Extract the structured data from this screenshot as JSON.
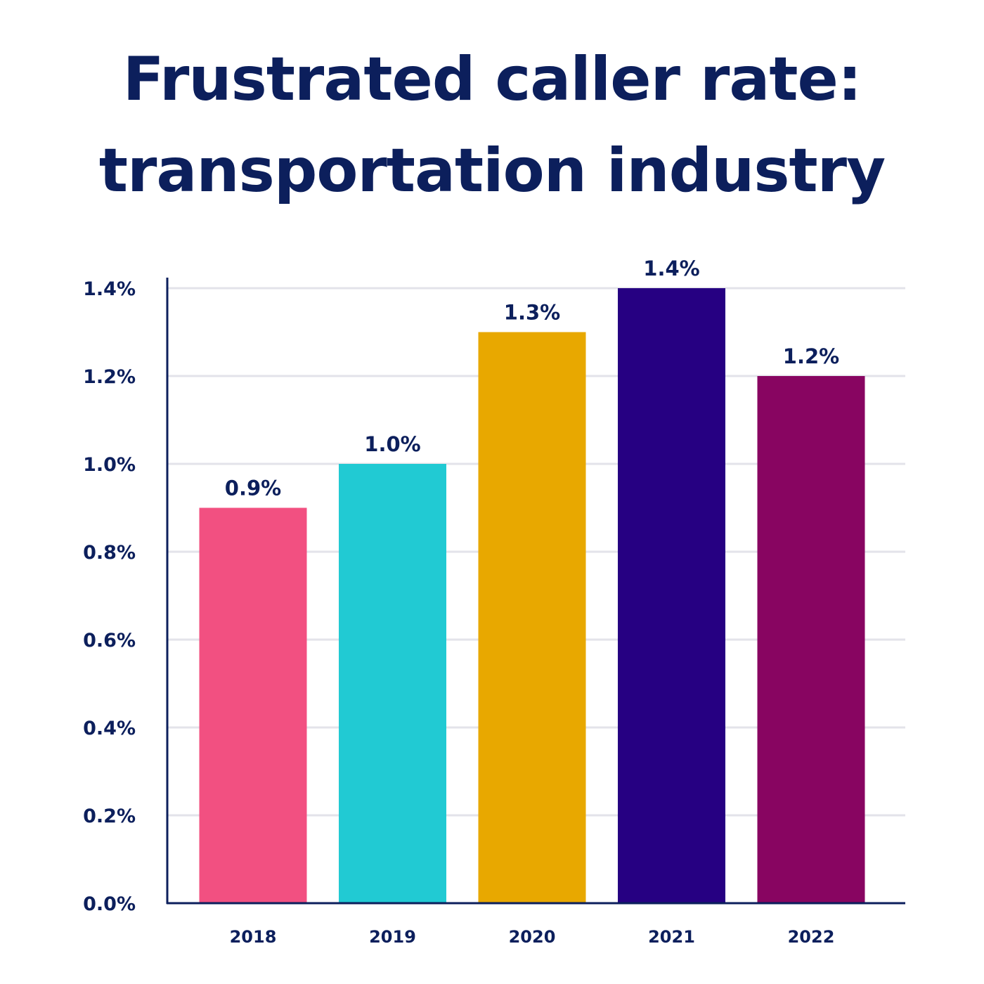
{
  "chart_data": {
    "type": "bar",
    "title_lines": [
      "Frustrated caller rate:",
      "transportation industry"
    ],
    "categories": [
      "2018",
      "2019",
      "2020",
      "2021",
      "2022"
    ],
    "values": [
      0.9,
      1.0,
      1.3,
      1.4,
      1.2
    ],
    "data_labels": [
      "0.9%",
      "1.0%",
      "1.3%",
      "1.4%",
      "1.2%"
    ],
    "bar_colors": [
      "#f25081",
      "#21cad3",
      "#e8a800",
      "#260082",
      "#880561"
    ],
    "ylim": [
      0,
      1.4
    ],
    "yticks": [
      0,
      0.2,
      0.4,
      0.6,
      0.8,
      1.0,
      1.2,
      1.4
    ],
    "ytick_labels": [
      "0.0%",
      "0.2%",
      "0.4%",
      "0.6%",
      "0.8%",
      "1.0%",
      "1.2%",
      "1.4%"
    ],
    "grid": true,
    "legend": "none",
    "text_color": "#0c1f5c",
    "grid_color": "#e3e3ea"
  }
}
